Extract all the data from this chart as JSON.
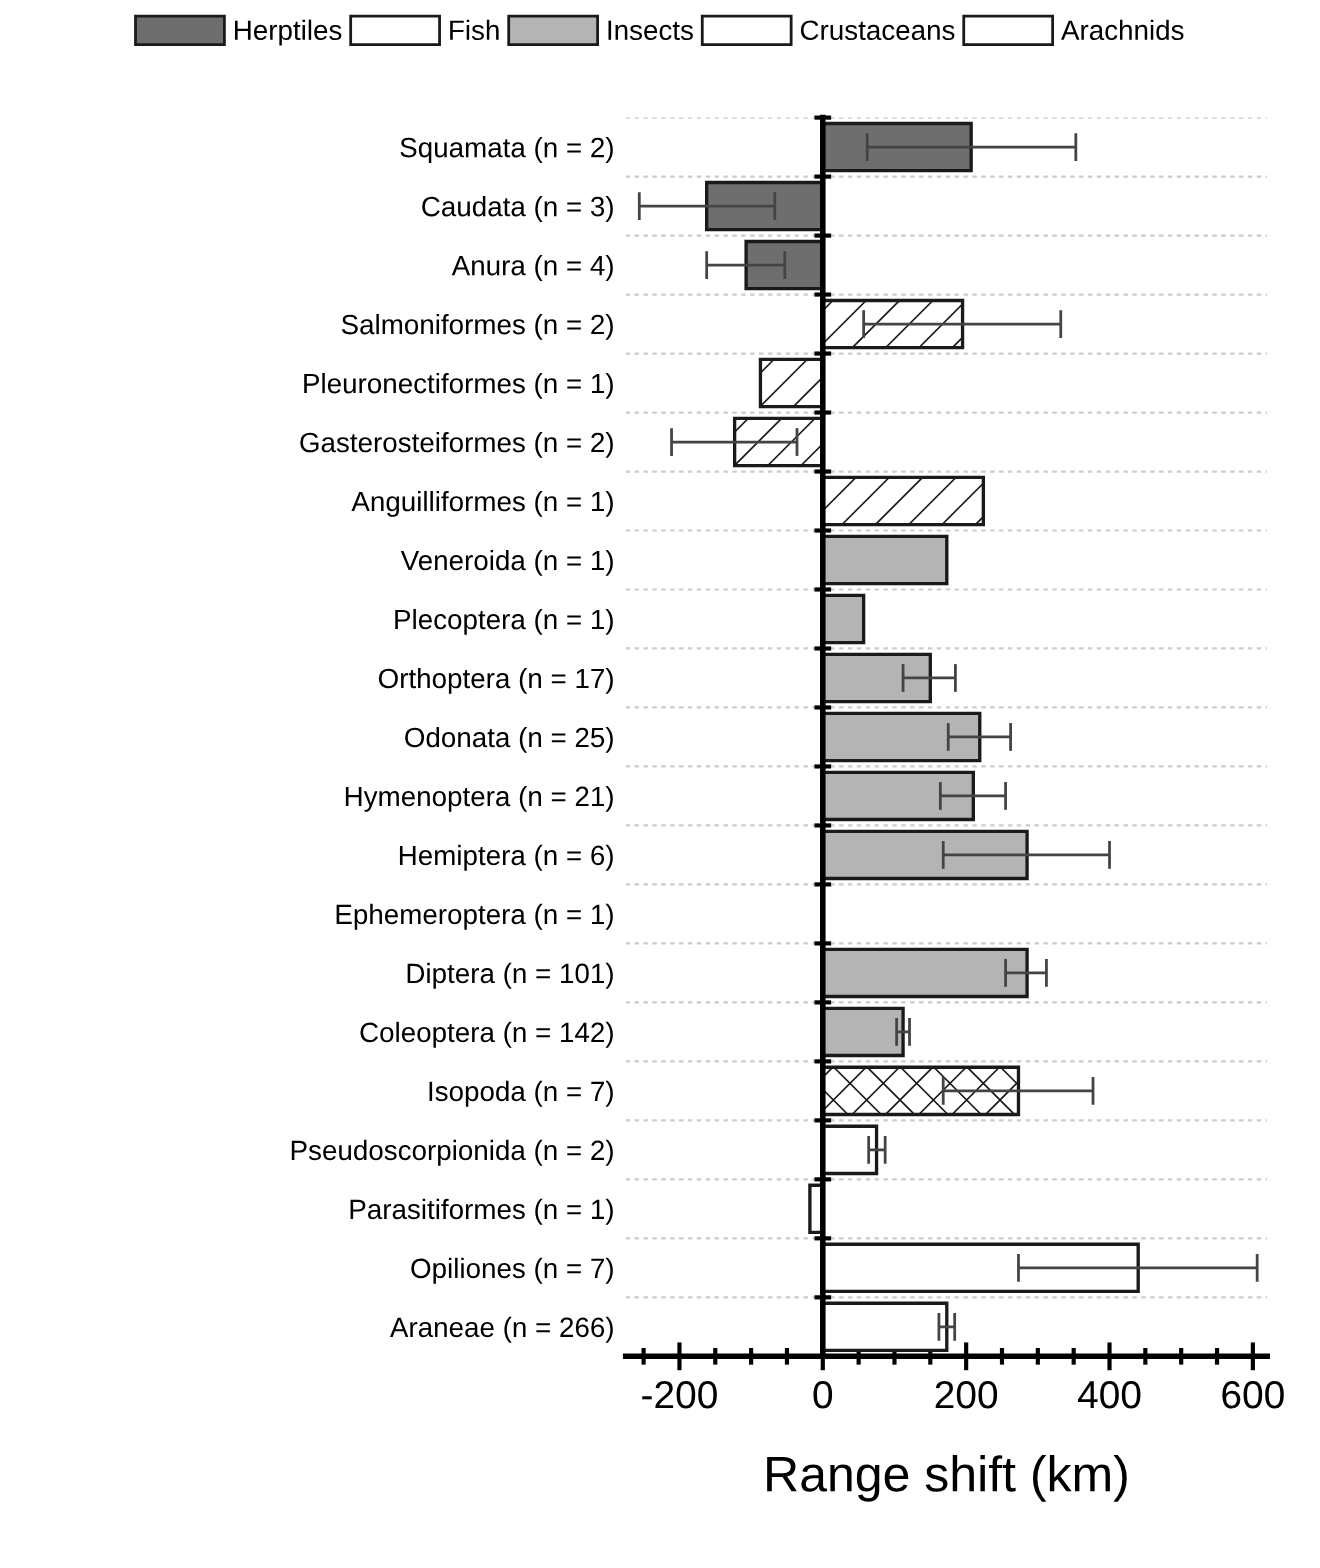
{
  "chart_data": {
    "type": "bar",
    "orientation": "horizontal",
    "xlabel": "Range shift (km)",
    "categories": [
      "Squamata (n = 2)",
      "Caudata (n = 3)",
      "Anura (n = 4)",
      "Salmoniformes (n = 2)",
      "Pleuronectiformes (n = 1)",
      "Gasterosteiformes (n = 2)",
      "Anguilliformes (n = 1)",
      "Veneroida (n = 1)",
      "Plecoptera (n = 1)",
      "Orthoptera (n = 17)",
      "Odonata (n = 25)",
      "Hymenoptera (n = 21)",
      "Hemiptera (n = 6)",
      "Ephemeroptera (n = 1)",
      "Diptera (n = 101)",
      "Coleoptera (n = 142)",
      "Isopoda (n = 7)",
      "Pseudoscorpionida (n = 2)",
      "Parasitiformes (n = 1)",
      "Opiliones (n = 7)",
      "Araneae (n = 266)"
    ],
    "series": [
      {
        "name": "Herptiles",
        "color": "#6e6e6e",
        "values": [
          207,
          -162,
          -107,
          null,
          null,
          null,
          null,
          null,
          null,
          null,
          null,
          null,
          null,
          null,
          null,
          null,
          null,
          null,
          null,
          null,
          null
        ],
        "errors": [
          [
            62,
            353
          ],
          [
            -256,
            -67
          ],
          [
            -162,
            -53
          ],
          null,
          null,
          null,
          null,
          null,
          null,
          null,
          null,
          null,
          null,
          null,
          null,
          null,
          null,
          null,
          null,
          null,
          null
        ]
      },
      {
        "name": "Fish",
        "color": "#ffffff",
        "values": [
          null,
          null,
          null,
          195,
          -87,
          -123,
          224,
          null,
          null,
          null,
          null,
          null,
          null,
          null,
          null,
          null,
          null,
          null,
          null,
          null,
          null
        ],
        "errors": [
          null,
          null,
          null,
          [
            57,
            332
          ],
          null,
          [
            -211,
            -36
          ],
          null,
          null,
          null,
          null,
          null,
          null,
          null,
          null,
          null,
          null,
          null,
          null,
          null,
          null,
          null
        ]
      },
      {
        "name": "Insects",
        "color": "#b4b4b4",
        "values": [
          null,
          null,
          null,
          null,
          null,
          null,
          null,
          173,
          57,
          150,
          219,
          210,
          285,
          null,
          285,
          112,
          null,
          null,
          null,
          null,
          null
        ],
        "errors": [
          null,
          null,
          null,
          null,
          null,
          null,
          null,
          null,
          null,
          [
            112,
            185
          ],
          [
            175,
            262
          ],
          [
            164,
            255
          ],
          [
            168,
            400
          ],
          null,
          [
            255,
            312
          ],
          [
            103,
            121
          ],
          null,
          null,
          null,
          null,
          null
        ]
      },
      {
        "name": "Crustaceans",
        "color": "#ffffff",
        "values": [
          null,
          null,
          null,
          null,
          null,
          null,
          null,
          null,
          null,
          null,
          null,
          null,
          null,
          null,
          null,
          null,
          273,
          null,
          null,
          null,
          null
        ],
        "errors": [
          null,
          null,
          null,
          null,
          null,
          null,
          null,
          null,
          null,
          null,
          null,
          null,
          null,
          null,
          null,
          null,
          [
            168,
            377
          ],
          null,
          null,
          null,
          null
        ]
      },
      {
        "name": "Arachnids",
        "color": "#ffffff",
        "values": [
          null,
          null,
          null,
          null,
          null,
          null,
          null,
          null,
          null,
          null,
          null,
          null,
          null,
          null,
          null,
          null,
          null,
          75,
          -18,
          440,
          173
        ],
        "errors": [
          null,
          null,
          null,
          null,
          null,
          null,
          null,
          null,
          null,
          null,
          null,
          null,
          null,
          null,
          null,
          null,
          null,
          [
            64,
            87
          ],
          null,
          [
            273,
            606
          ],
          [
            162,
            184
          ]
        ]
      }
    ],
    "xlim": [
      -275,
      620
    ],
    "xticks": [
      -200,
      0,
      200,
      400,
      600
    ],
    "grid": "y",
    "legend": "top"
  }
}
